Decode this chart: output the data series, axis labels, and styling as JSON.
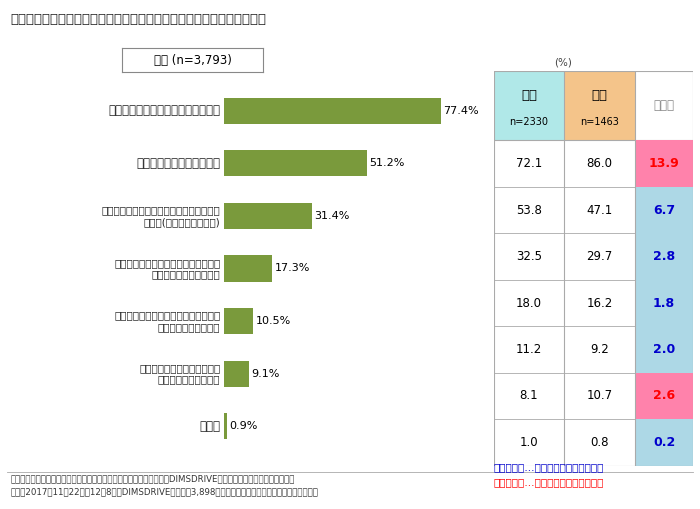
{
  "title": "表５　「ふだんどのようにカレーを食べていますか」　についての回答",
  "subtitle": "全体 (n=3,793)",
  "categories": [
    "市販のルウで作ったカレーを食べる",
    "レトルトのカレーを食べる",
    "カレーショップ・カレー専門店のカレーを\n食べる(テイクアウト含む)",
    "カレーショップ・カレー専門店以外の\n飲食店でカレーを食べる",
    "コンビニやスーパー、お弁当屋さんで\n買ったカレーを食べる",
    "カレー粉・スパイスなどから\n作ったカレーを食べる",
    "その他"
  ],
  "values": [
    77.4,
    51.2,
    31.4,
    17.3,
    10.5,
    9.1,
    0.9
  ],
  "bar_color": "#7a9a3c",
  "male_values": [
    72.1,
    53.8,
    32.5,
    18.0,
    11.2,
    8.1,
    1.0
  ],
  "female_values": [
    86.0,
    47.1,
    29.7,
    16.2,
    9.2,
    10.7,
    0.8
  ],
  "gender_diff": [
    13.9,
    6.7,
    2.8,
    1.8,
    2.0,
    2.6,
    0.2
  ],
  "diff_colors": [
    "#ff82ab",
    "#add8e6",
    "#add8e6",
    "#add8e6",
    "#add8e6",
    "#ff82ab",
    "#add8e6"
  ],
  "diff_text_colors": [
    "#ff0000",
    "#0000cc",
    "#0000cc",
    "#0000cc",
    "#0000cc",
    "#ff0000",
    "#0000cc"
  ],
  "male_header": "男性",
  "female_header": "女性",
  "diff_header": "男女差",
  "male_n": "n=2330",
  "female_n": "n=1463",
  "male_header_bg": "#b0e8e8",
  "female_header_bg": "#f4c48a",
  "footer_line1": "調査機関：インターワイヤード株式会社が運営するネットリサーチ『DIMSDRIVE』実施のアンケート「カレー」。",
  "footer_line2": "期間：2017年11月22日〜12月8日、DIMSDRIVEモニター3,898人が回答。エピソードも同アンケートです。",
  "legend_blue": "男女差青字…男性のほうが数値が高い",
  "legend_red": "男女差赤字…女性のほうが数値が高い"
}
